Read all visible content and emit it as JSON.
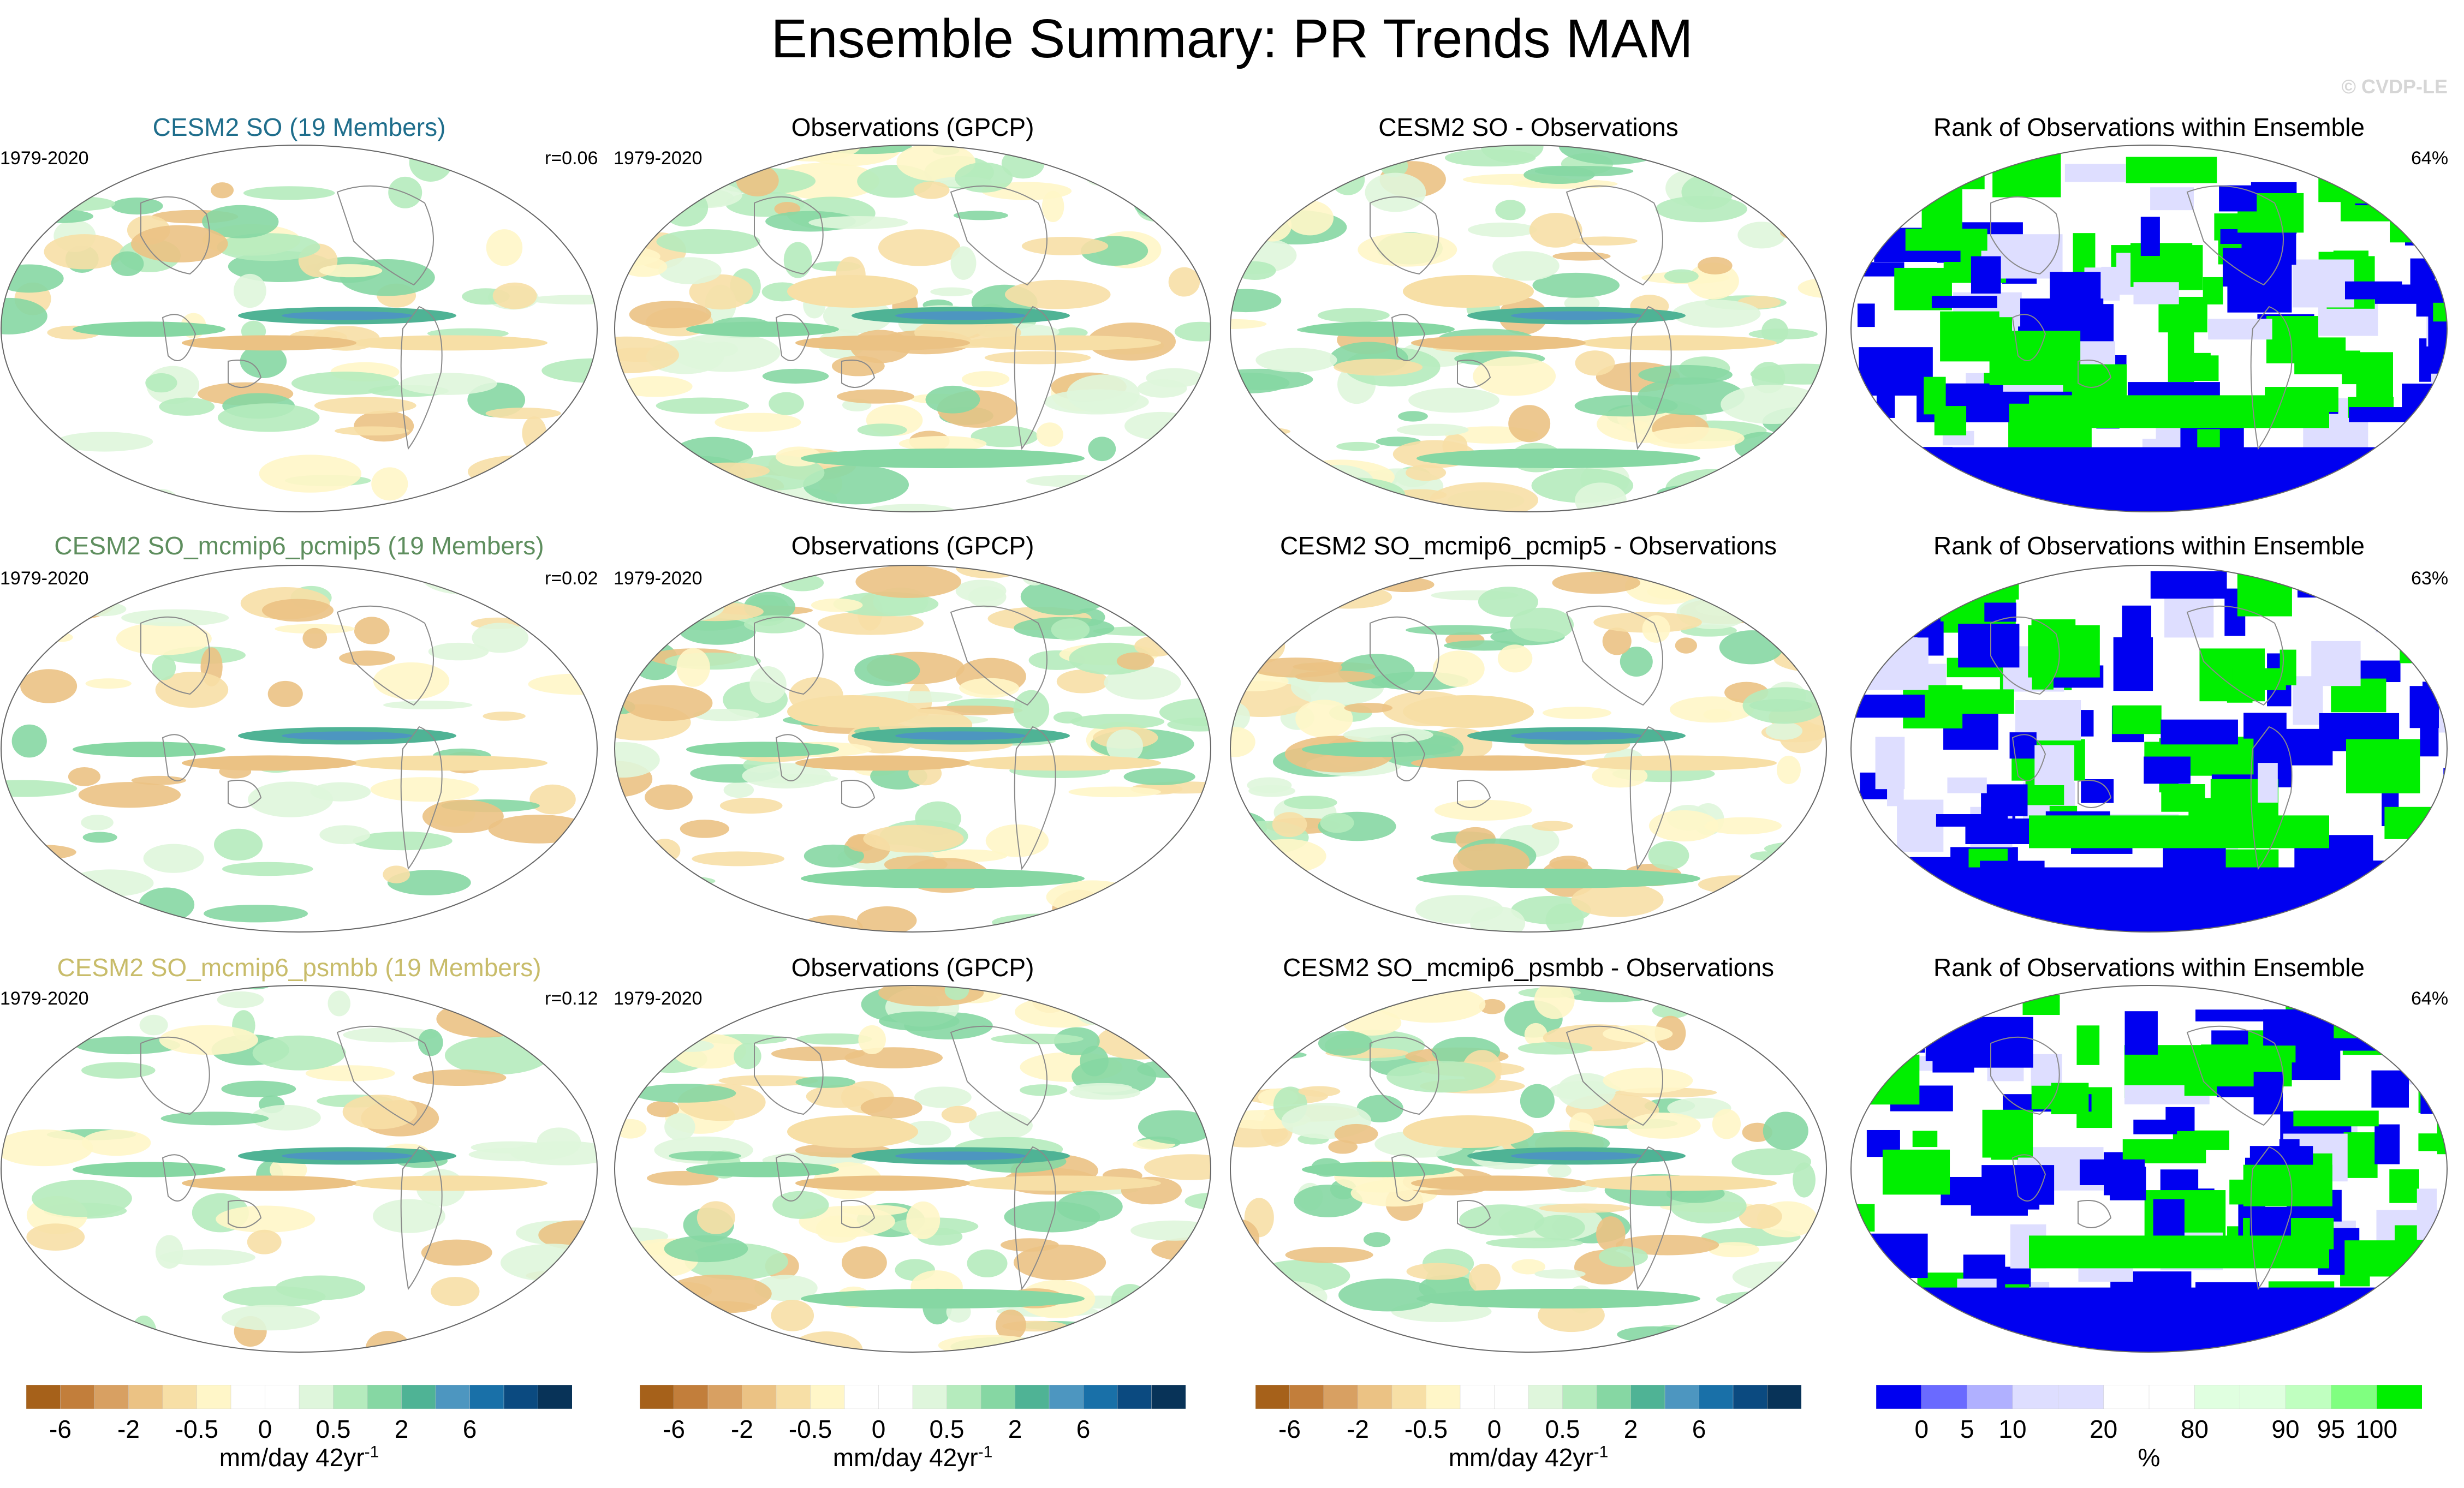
{
  "title": "Ensemble Summary: PR Trends MAM",
  "watermark": "© CVDP-LE",
  "rows": [
    {
      "model": {
        "title": "CESM2 SO (19 Members)",
        "title_color": "#1f6e8c",
        "period": "1979-2020",
        "corr": "r=0.06"
      },
      "obs": {
        "title": "Observations (GPCP)",
        "period": "1979-2020"
      },
      "diff": {
        "title": "CESM2 SO - Observations"
      },
      "rank": {
        "title": "Rank of Observations within Ensemble",
        "percent": "64%"
      }
    },
    {
      "model": {
        "title": "CESM2 SO_mcmip6_pcmip5 (19 Members)",
        "title_color": "#5e8e5e",
        "period": "1979-2020",
        "corr": "r=0.02"
      },
      "obs": {
        "title": "Observations (GPCP)",
        "period": "1979-2020"
      },
      "diff": {
        "title": "CESM2 SO_mcmip6_pcmip5 - Observations"
      },
      "rank": {
        "title": "Rank of Observations within Ensemble",
        "percent": "63%"
      }
    },
    {
      "model": {
        "title": "CESM2 SO_mcmip6_psmbb (19 Members)",
        "title_color": "#c8bc6a",
        "period": "1979-2020",
        "corr": "r=0.12"
      },
      "obs": {
        "title": "Observations (GPCP)",
        "period": "1979-2020"
      },
      "diff": {
        "title": "CESM2 SO_mcmip6_psmbb - Observations"
      },
      "rank": {
        "title": "Rank of Observations within Ensemble",
        "percent": "64%"
      }
    }
  ],
  "trend_colorbar": {
    "colors": [
      "#a6611a",
      "#c27e3b",
      "#d8a062",
      "#ebc284",
      "#f7dfa6",
      "#fff6c8",
      "#ffffff",
      "#ffffff",
      "#dff6dc",
      "#b5ebbd",
      "#86d7a3",
      "#4fb395",
      "#4d96c0",
      "#1970a8",
      "#0b4a80",
      "#083358"
    ],
    "labels": [
      "-6",
      "-2",
      "-0.5",
      "0",
      "0.5",
      "2",
      "6"
    ],
    "units": "mm/day 42yr",
    "units_exp": "-1"
  },
  "rank_colorbar": {
    "colors": [
      "#0000f0",
      "#6a6aff",
      "#b0b0ff",
      "#dedeff",
      "#dedeff",
      "#ffffff",
      "#ffffff",
      "#e0ffe0",
      "#e0ffe0",
      "#c0ffc0",
      "#80ff80",
      "#00ef00"
    ],
    "labels": [
      "0",
      "5",
      "10",
      "20",
      "80",
      "90",
      "95",
      "100"
    ],
    "units": "%"
  },
  "chart_data": [
    {
      "type": "heatmap",
      "title": "CESM2 SO (19 Members)",
      "subtitle": "1979-2020",
      "annotation": "r=0.06",
      "colorbar": "trend_colorbar",
      "units": "mm/day 42yr-1"
    },
    {
      "type": "heatmap",
      "title": "Observations (GPCP)",
      "subtitle": "1979-2020",
      "colorbar": "trend_colorbar",
      "units": "mm/day 42yr-1"
    },
    {
      "type": "heatmap",
      "title": "CESM2 SO - Observations",
      "colorbar": "trend_colorbar",
      "units": "mm/day 42yr-1"
    },
    {
      "type": "heatmap",
      "title": "Rank of Observations within Ensemble",
      "annotation": "64%",
      "colorbar": "rank_colorbar",
      "units": "%"
    },
    {
      "type": "heatmap",
      "title": "CESM2 SO_mcmip6_pcmip5 (19 Members)",
      "subtitle": "1979-2020",
      "annotation": "r=0.02",
      "colorbar": "trend_colorbar",
      "units": "mm/day 42yr-1"
    },
    {
      "type": "heatmap",
      "title": "Observations (GPCP)",
      "subtitle": "1979-2020",
      "colorbar": "trend_colorbar",
      "units": "mm/day 42yr-1"
    },
    {
      "type": "heatmap",
      "title": "CESM2 SO_mcmip6_pcmip5 - Observations",
      "colorbar": "trend_colorbar",
      "units": "mm/day 42yr-1"
    },
    {
      "type": "heatmap",
      "title": "Rank of Observations within Ensemble",
      "annotation": "63%",
      "colorbar": "rank_colorbar",
      "units": "%"
    },
    {
      "type": "heatmap",
      "title": "CESM2 SO_mcmip6_psmbb (19 Members)",
      "subtitle": "1979-2020",
      "annotation": "r=0.12",
      "colorbar": "trend_colorbar",
      "units": "mm/day 42yr-1"
    },
    {
      "type": "heatmap",
      "title": "Observations (GPCP)",
      "subtitle": "1979-2020",
      "colorbar": "trend_colorbar",
      "units": "mm/day 42yr-1"
    },
    {
      "type": "heatmap",
      "title": "CESM2 SO_mcmip6_psmbb - Observations",
      "colorbar": "trend_colorbar",
      "units": "mm/day 42yr-1"
    },
    {
      "type": "heatmap",
      "title": "Rank of Observations within Ensemble",
      "annotation": "64%",
      "colorbar": "rank_colorbar",
      "units": "%"
    }
  ]
}
